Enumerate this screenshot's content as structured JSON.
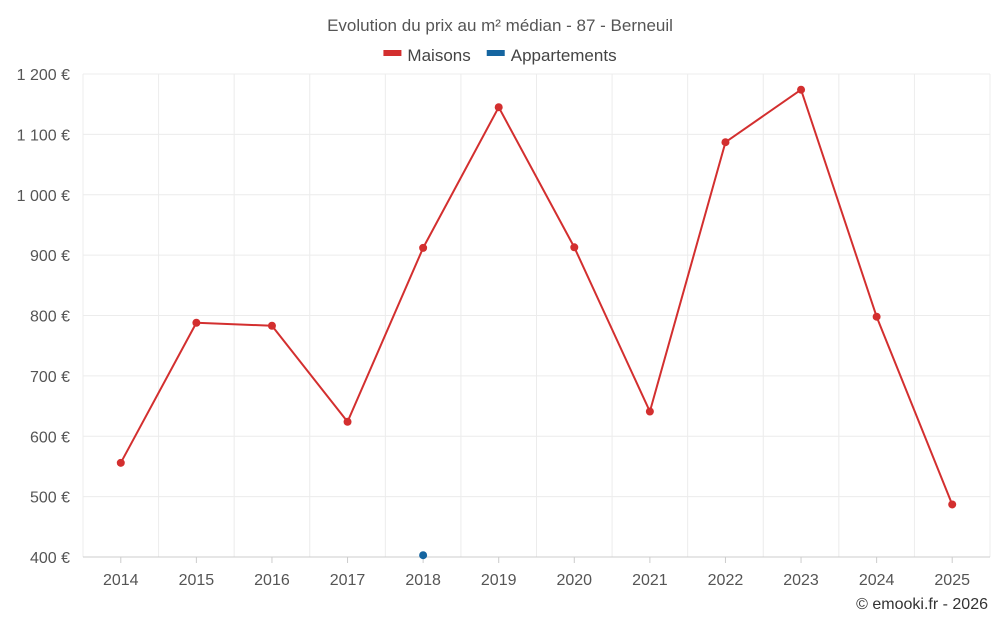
{
  "chart_data": {
    "type": "line",
    "title": "Evolution du prix au m² médian - 87 - Berneuil",
    "categories": [
      "2014",
      "2015",
      "2016",
      "2017",
      "2018",
      "2019",
      "2020",
      "2021",
      "2022",
      "2023",
      "2024",
      "2025"
    ],
    "series": [
      {
        "name": "Maisons",
        "color": "#d32f2f",
        "values": [
          556,
          788,
          783,
          624,
          912,
          1145,
          913,
          641,
          1087,
          1174,
          798,
          487
        ]
      },
      {
        "name": "Appartements",
        "color": "#1565a0",
        "values": [
          null,
          null,
          null,
          null,
          403,
          null,
          null,
          null,
          null,
          null,
          null,
          null
        ]
      }
    ],
    "y_ticks": [
      400,
      500,
      600,
      700,
      800,
      900,
      1000,
      1100,
      1200
    ],
    "y_tick_labels": [
      "400 €",
      "500 €",
      "600 €",
      "700 €",
      "800 €",
      "900 €",
      "1 000 €",
      "1 100 €",
      "1 200 €"
    ],
    "ylim": [
      400,
      1200
    ],
    "xlabel": "",
    "ylabel": "",
    "grid": true,
    "legend_position": "top-center"
  },
  "credit": "© emooki.fr - 2026"
}
